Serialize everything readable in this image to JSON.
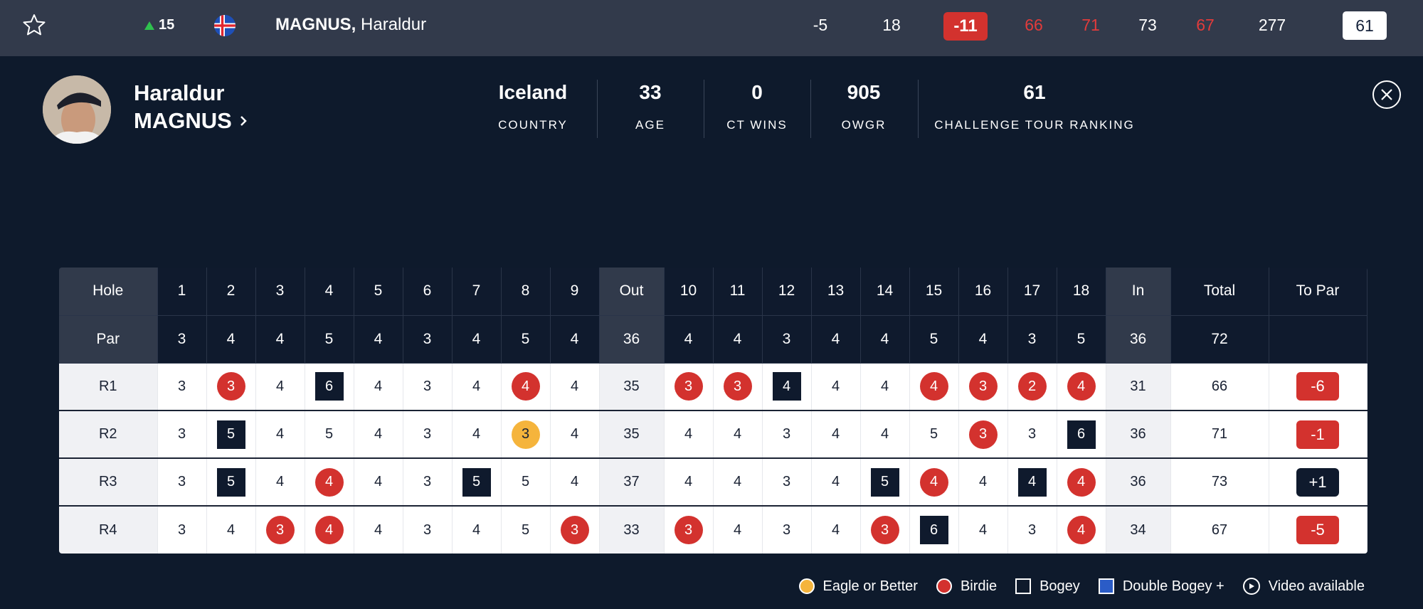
{
  "top": {
    "movement": "15",
    "player_last": "MAGNUS,",
    "player_first": "Haraldur",
    "to_par_today": "-5",
    "thru": "18",
    "total_to_par": "-11",
    "r1": "66",
    "r2": "71",
    "r3": "73",
    "r4": "67",
    "total": "277",
    "ranking": "61"
  },
  "profile": {
    "first_name": "Haraldur",
    "last_name": "MAGNUS",
    "stats": [
      {
        "value": "Iceland",
        "label": "COUNTRY"
      },
      {
        "value": "33",
        "label": "AGE"
      },
      {
        "value": "0",
        "label": "CT WINS"
      },
      {
        "value": "905",
        "label": "OWGR"
      },
      {
        "value": "61",
        "label": "CHALLENGE TOUR RANKING"
      }
    ]
  },
  "scorecard": {
    "hole_label": "Hole",
    "par_label": "Par",
    "out_label": "Out",
    "in_label": "In",
    "total_label": "Total",
    "topar_label": "To Par",
    "holes": [
      "1",
      "2",
      "3",
      "4",
      "5",
      "6",
      "7",
      "8",
      "9",
      "10",
      "11",
      "12",
      "13",
      "14",
      "15",
      "16",
      "17",
      "18"
    ],
    "par": [
      "3",
      "4",
      "4",
      "5",
      "4",
      "3",
      "4",
      "5",
      "4",
      "4",
      "4",
      "3",
      "4",
      "4",
      "5",
      "4",
      "3",
      "5"
    ],
    "par_out": "36",
    "par_in": "36",
    "par_total": "72",
    "rounds": [
      {
        "label": "R1",
        "scores": [
          "3",
          "3",
          "4",
          "6",
          "4",
          "3",
          "4",
          "4",
          "4",
          "3",
          "3",
          "4",
          "4",
          "4",
          "4",
          "3",
          "2",
          "4"
        ],
        "out": "35",
        "in": "31",
        "total": "66",
        "to_par": "-6"
      },
      {
        "label": "R2",
        "scores": [
          "3",
          "5",
          "4",
          "5",
          "4",
          "3",
          "4",
          "3",
          "4",
          "4",
          "4",
          "3",
          "4",
          "4",
          "5",
          "3",
          "3",
          "6"
        ],
        "out": "35",
        "in": "36",
        "total": "71",
        "to_par": "-1"
      },
      {
        "label": "R3",
        "scores": [
          "3",
          "5",
          "4",
          "4",
          "4",
          "3",
          "5",
          "5",
          "4",
          "4",
          "4",
          "3",
          "4",
          "5",
          "4",
          "4",
          "4",
          "4"
        ],
        "out": "37",
        "in": "36",
        "total": "73",
        "to_par": "+1"
      },
      {
        "label": "R4",
        "scores": [
          "3",
          "4",
          "3",
          "4",
          "4",
          "3",
          "4",
          "5",
          "3",
          "3",
          "4",
          "3",
          "4",
          "3",
          "6",
          "4",
          "3",
          "4"
        ],
        "out": "33",
        "in": "34",
        "total": "67",
        "to_par": "-5"
      }
    ]
  },
  "legend": {
    "eagle": "Eagle or Better",
    "birdie": "Birdie",
    "bogey": "Bogey",
    "double_bogey": "Double Bogey +",
    "video": "Video available"
  },
  "colors": {
    "background": "#0e1a2c",
    "birdie": "#d3322e",
    "eagle": "#f5b43c",
    "bogey": "#0f1a2d",
    "double_bogey": "#2b5cc7"
  },
  "icons": {
    "favorite": "star-icon",
    "movement": "up-arrow-icon",
    "flag": "iceland-flag-icon",
    "profile_link": "chevron-right-icon",
    "close": "close-icon",
    "video": "play-icon"
  }
}
